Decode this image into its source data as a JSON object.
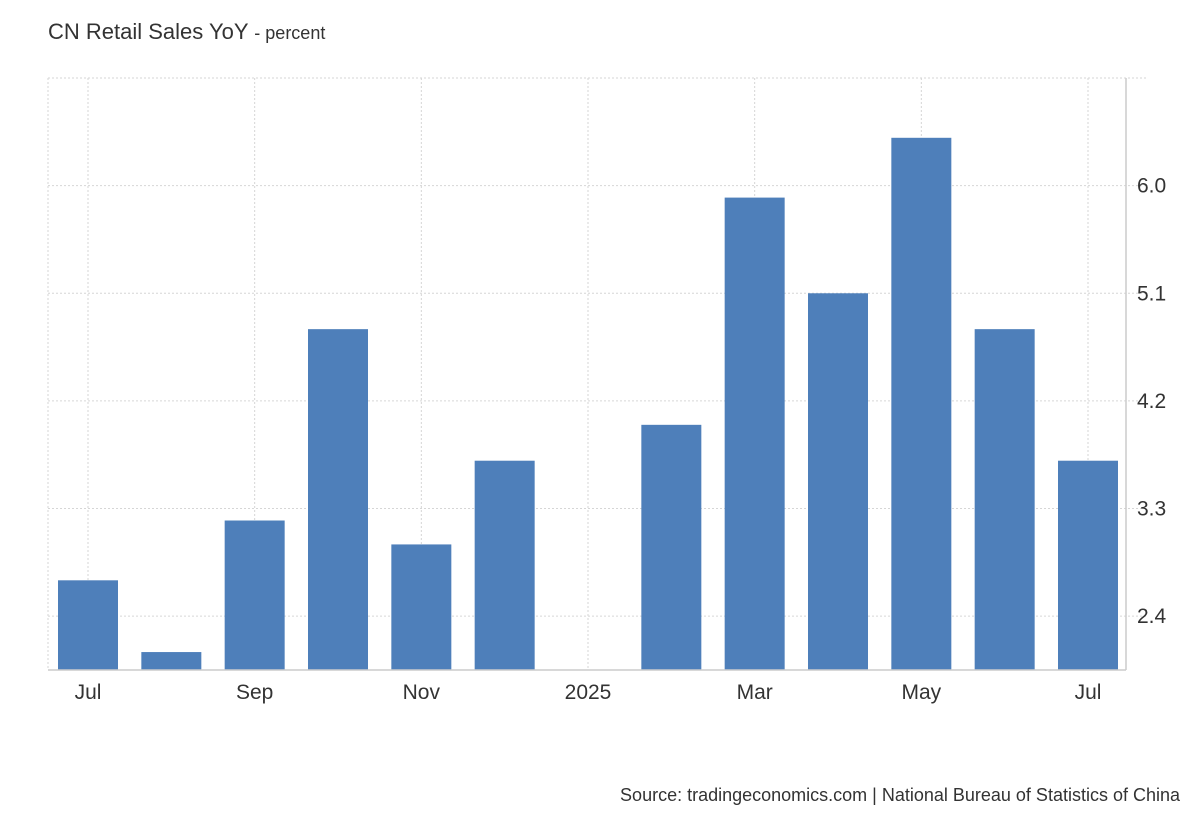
{
  "chart_data": {
    "type": "bar",
    "title": "CN Retail Sales YoY",
    "subtitle": "- percent",
    "xlabel": "",
    "ylabel": "",
    "categories": [
      "2024-07",
      "2024-08",
      "2024-09",
      "2024-10",
      "2024-11",
      "2024-12",
      "2025-01",
      "2025-02",
      "2025-03",
      "2025-04",
      "2025-05",
      "2025-06",
      "2025-07"
    ],
    "x_tick_labels": [
      {
        "category": "2024-07",
        "label": "Jul"
      },
      {
        "category": "2024-09",
        "label": "Sep"
      },
      {
        "category": "2024-11",
        "label": "Nov"
      },
      {
        "category": "2025-01",
        "label": "2025"
      },
      {
        "category": "2025-03",
        "label": "Mar"
      },
      {
        "category": "2025-05",
        "label": "May"
      },
      {
        "category": "2025-07",
        "label": "Jul"
      }
    ],
    "series": [
      {
        "values": [
          2.7,
          2.1,
          3.2,
          4.8,
          3.0,
          3.7,
          null,
          4.0,
          5.9,
          5.1,
          6.4,
          4.8,
          3.7
        ],
        "color": "#4e7fba"
      }
    ],
    "y_ticks": [
      2.4,
      3.3,
      4.2,
      5.1,
      6.0
    ],
    "ylim": [
      1.95,
      6.9
    ],
    "y_axis_position": "right",
    "grid": true,
    "legend": "none",
    "source": "Source: tradingeconomics.com | National Bureau of Statistics of China"
  }
}
